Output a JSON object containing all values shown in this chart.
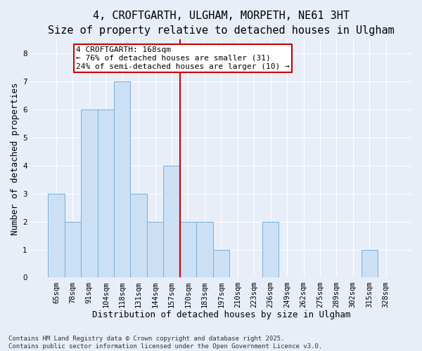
{
  "title": "4, CROFTGARTH, ULGHAM, MORPETH, NE61 3HT",
  "subtitle": "Size of property relative to detached houses in Ulgham",
  "xlabel": "Distribution of detached houses by size in Ulgham",
  "ylabel": "Number of detached properties",
  "categories": [
    "65sqm",
    "78sqm",
    "91sqm",
    "104sqm",
    "118sqm",
    "131sqm",
    "144sqm",
    "157sqm",
    "170sqm",
    "183sqm",
    "197sqm",
    "210sqm",
    "223sqm",
    "236sqm",
    "249sqm",
    "262sqm",
    "275sqm",
    "289sqm",
    "302sqm",
    "315sqm",
    "328sqm"
  ],
  "values": [
    3,
    2,
    6,
    6,
    7,
    3,
    2,
    4,
    2,
    2,
    1,
    0,
    0,
    2,
    0,
    0,
    0,
    0,
    0,
    1,
    0
  ],
  "bar_color": "#cce0f5",
  "bar_edge_color": "#7aaed6",
  "vline_x_index": 8,
  "vline_color": "#cc0000",
  "annotation_text": "4 CROFTGARTH: 168sqm\n← 76% of detached houses are smaller (31)\n24% of semi-detached houses are larger (10) →",
  "annotation_box_color": "#ffffff",
  "annotation_box_edge": "#cc0000",
  "ylim": [
    0,
    8.5
  ],
  "yticks": [
    0,
    1,
    2,
    3,
    4,
    5,
    6,
    7,
    8
  ],
  "background_color": "#e8eef8",
  "grid_color": "#ffffff",
  "footer_text": "Contains HM Land Registry data © Crown copyright and database right 2025.\nContains public sector information licensed under the Open Government Licence v3.0.",
  "title_fontsize": 11,
  "subtitle_fontsize": 10,
  "xlabel_fontsize": 9,
  "ylabel_fontsize": 9,
  "tick_fontsize": 7.5,
  "annotation_fontsize": 8,
  "footer_fontsize": 6.5
}
